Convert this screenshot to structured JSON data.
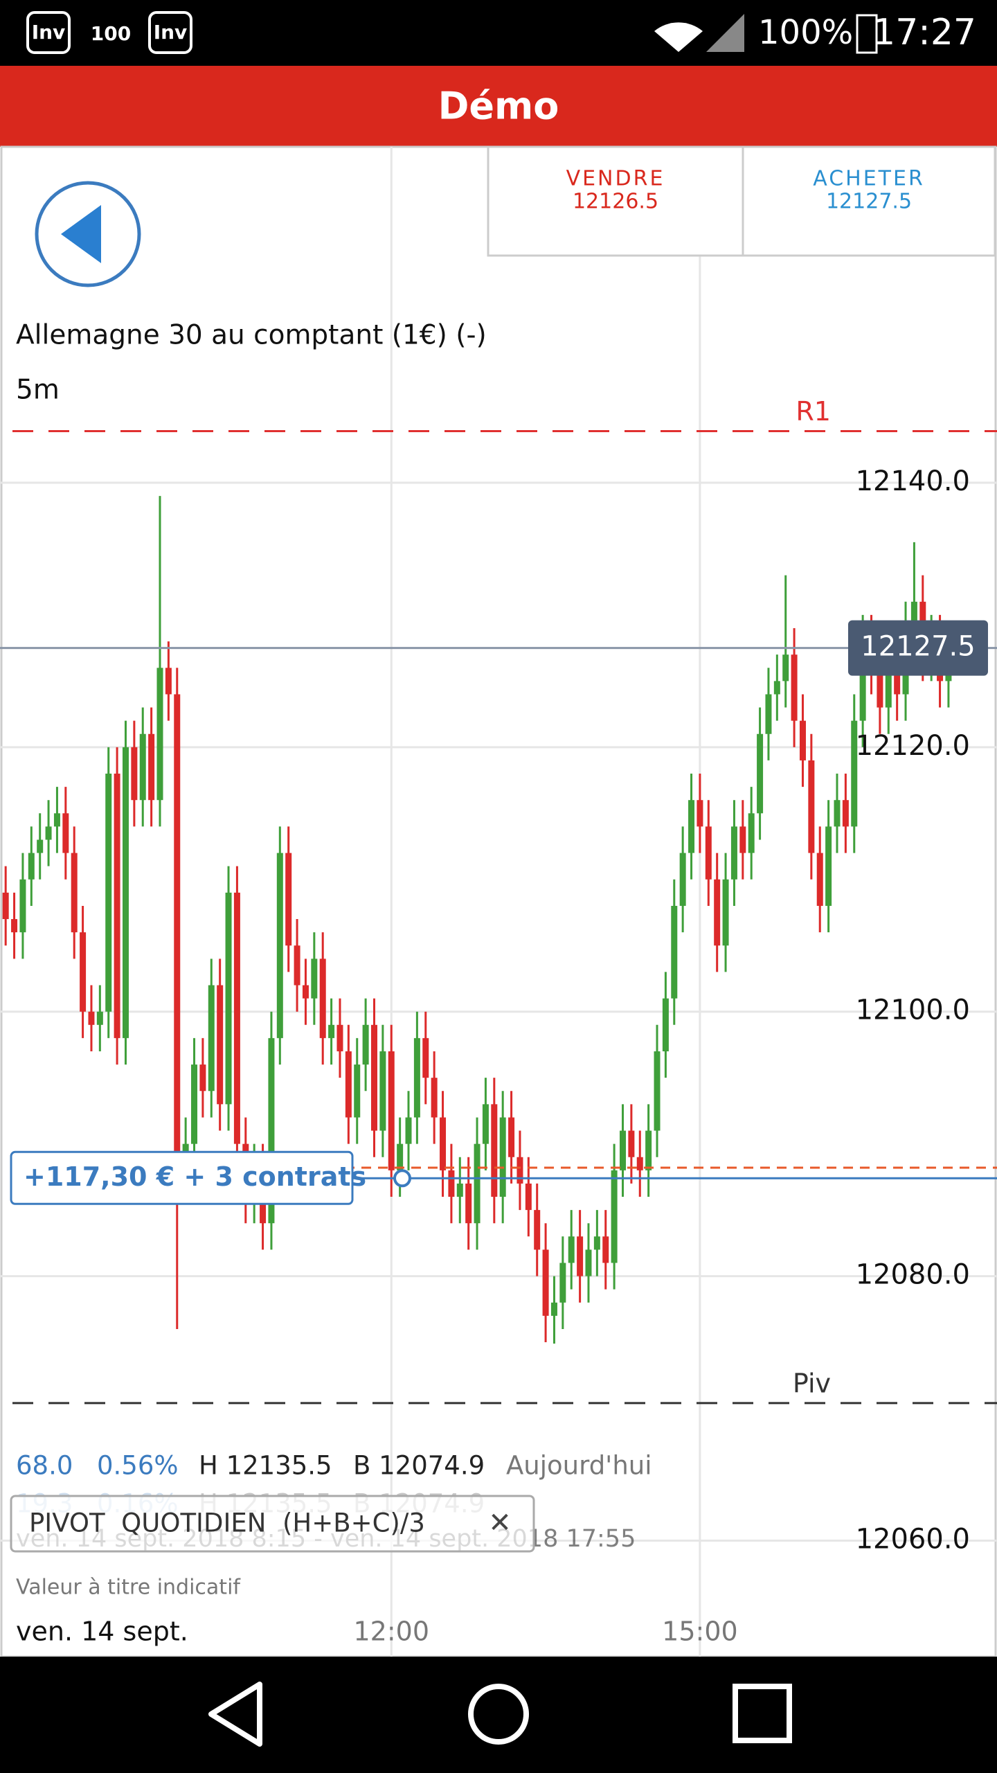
{
  "status_bar": {
    "icons": [
      "Inv",
      "100",
      "Inv"
    ],
    "battery": "100%",
    "time": "17:27"
  },
  "header": {
    "title": "Démo"
  },
  "buttons": {
    "sell": {
      "label": "VENDRE",
      "price": "12126.5"
    },
    "buy": {
      "label": "ACHETER",
      "price": "12127.5"
    }
  },
  "instrument": {
    "name": "Allemagne 30 au comptant (1€) (-)",
    "interval": "5m"
  },
  "stats": {
    "change": "68.0",
    "change_pct": "0.56%",
    "high": "H 12135.5",
    "low": "B 12074.9",
    "period": "Aujourd'hui"
  },
  "ghost": {
    "change": "19.3",
    "change_pct": "0.16%",
    "high": "H 12135.5",
    "low": "B 12074.9",
    "range": "ven. 14 sept. 2018 8:15 - ven. 14 sept. 2018 17:55"
  },
  "indicator_chip": {
    "label": "PIVOT  QUOTIDIEN  (H+B+C)/3",
    "close": "✕"
  },
  "note": "Valeur à titre indicatif",
  "chart_data": {
    "type": "candlestick",
    "up_color": "#3f9f3a",
    "down_color": "#dc2a2a",
    "grid": true,
    "ylim": [
      12055.1,
      12165.4
    ],
    "yticks": [
      {
        "value": 12140,
        "label": "12140.0"
      },
      {
        "value": 12120,
        "label": "12120.0"
      },
      {
        "value": 12100,
        "label": "12100.0"
      },
      {
        "value": 12080,
        "label": "12080.0"
      },
      {
        "value": 12060,
        "label": "12060.0"
      }
    ],
    "xlim": [
      -0.66,
      115.66
    ],
    "xticks": [
      {
        "value": 45,
        "label": "12:00"
      },
      {
        "value": 81,
        "label": "15:00"
      }
    ],
    "date_label": "ven. 14 sept.",
    "current": {
      "value": 12127.5,
      "color": "#4a5a72"
    },
    "hlines": [
      {
        "label": "R1",
        "value": 12143.9,
        "color": "#e03030",
        "dash": true
      },
      {
        "label": "Piv",
        "value": 12070.4,
        "color": "#333333",
        "dash": true
      },
      {
        "value": 12088.2,
        "color": "#e8592a",
        "dash": true
      },
      {
        "label": "+117,30 € + 3 contrats",
        "value": 12087.4,
        "color": "#3b7bbf",
        "dash": false
      }
    ],
    "open": [
      12109,
      12107,
      12106,
      12110,
      12112,
      12113,
      12114,
      12115,
      12112,
      12106,
      12100,
      12099,
      12100,
      12118,
      12098,
      12120,
      12116,
      12121,
      12116,
      12126,
      12124,
      12088,
      12090,
      12096,
      12094,
      12102,
      12093,
      12109,
      12090,
      12086,
      12088,
      12084,
      12098,
      12112,
      12105,
      12102,
      12101,
      12104,
      12098,
      12099,
      12097,
      12092,
      12096,
      12099,
      12091,
      12097,
      12088,
      12090,
      12092,
      12098,
      12095,
      12092,
      12088,
      12086,
      12087,
      12084,
      12090,
      12093,
      12086,
      12092,
      12089,
      12087,
      12085,
      12082,
      12077,
      12078,
      12081,
      12083,
      12080,
      12082,
      12083,
      12081,
      12088,
      12091,
      12089,
      12088,
      12091,
      12097,
      12101,
      12108,
      12112,
      12116,
      12114,
      12110,
      12105,
      12110,
      12114,
      12112,
      12115,
      12121,
      12124,
      12125,
      12127,
      12122,
      12119,
      12112,
      12108,
      12114,
      12116,
      12114,
      12122,
      12128,
      12126,
      12123,
      12126,
      12124,
      12129,
      12131,
      12127,
      12128,
      12125
    ],
    "high": [
      12111,
      12109,
      12112,
      12114,
      12115,
      12116,
      12117,
      12117,
      12114,
      12108,
      12102,
      12102,
      12120,
      12120,
      12122,
      12122,
      12123,
      12123,
      12139,
      12128,
      12126,
      12092,
      12098,
      12098,
      12104,
      12104,
      12111,
      12111,
      12092,
      12090,
      12090,
      12100,
      12114,
      12114,
      12107,
      12104,
      12106,
      12106,
      12101,
      12101,
      12099,
      12098,
      12101,
      12101,
      12099,
      12099,
      12092,
      12094,
      12100,
      12100,
      12097,
      12094,
      12090,
      12089,
      12089,
      12092,
      12095,
      12095,
      12094,
      12094,
      12091,
      12089,
      12087,
      12084,
      12080,
      12083,
      12085,
      12085,
      12084,
      12085,
      12085,
      12090,
      12093,
      12093,
      12091,
      12093,
      12099,
      12103,
      12110,
      12114,
      12118,
      12118,
      12116,
      12112,
      12112,
      12116,
      12116,
      12117,
      12123,
      12126,
      12127,
      12133,
      12129,
      12124,
      12121,
      12114,
      12116,
      12118,
      12118,
      12124,
      12130,
      12130,
      12128,
      12128,
      12128,
      12131,
      12135.5,
      12133,
      12130,
      12130,
      12129
    ],
    "low": [
      12105,
      12104,
      12104,
      12108,
      12110,
      12111,
      12112,
      12110,
      12104,
      12098,
      12097,
      12097,
      12098,
      12096,
      12096,
      12114,
      12114,
      12114,
      12114,
      12122,
      12076,
      12086,
      12088,
      12092,
      12092,
      12091,
      12091,
      12088,
      12084,
      12084,
      12082,
      12082,
      12096,
      12103,
      12100,
      12099,
      12099,
      12096,
      12096,
      12095,
      12090,
      12090,
      12094,
      12089,
      12089,
      12086,
      12086,
      12088,
      12090,
      12093,
      12090,
      12086,
      12084,
      12084,
      12082,
      12082,
      12088,
      12084,
      12084,
      12087,
      12085,
      12083,
      12080,
      12075,
      12074.9,
      12076,
      12079,
      12078,
      12078,
      12080,
      12079,
      12079,
      12086,
      12087,
      12086,
      12086,
      12089,
      12095,
      12099,
      12106,
      12110,
      12112,
      12108,
      12103,
      12103,
      12108,
      12110,
      12110,
      12113,
      12119,
      12122,
      12123,
      12120,
      12117,
      12110,
      12106,
      12106,
      12112,
      12112,
      12112,
      12120,
      12124,
      12121,
      12121,
      12122,
      12122,
      12127,
      12125,
      12125,
      12123,
      12123
    ],
    "close": [
      12107,
      12106,
      12110,
      12112,
      12113,
      12114,
      12115,
      12112,
      12106,
      12100,
      12099,
      12100,
      12118,
      12098,
      12120,
      12116,
      12121,
      12116,
      12126,
      12124,
      12088,
      12090,
      12096,
      12094,
      12102,
      12093,
      12109,
      12090,
      12086,
      12088,
      12084,
      12098,
      12112,
      12105,
      12102,
      12101,
      12104,
      12098,
      12099,
      12097,
      12092,
      12096,
      12099,
      12091,
      12097,
      12088,
      12090,
      12092,
      12098,
      12095,
      12092,
      12088,
      12086,
      12087,
      12084,
      12090,
      12093,
      12086,
      12092,
      12089,
      12087,
      12085,
      12082,
      12077,
      12078,
      12081,
      12083,
      12080,
      12082,
      12083,
      12081,
      12088,
      12091,
      12089,
      12088,
      12091,
      12097,
      12101,
      12108,
      12112,
      12116,
      12114,
      12110,
      12105,
      12110,
      12114,
      12112,
      12115,
      12121,
      12124,
      12125,
      12127,
      12122,
      12119,
      12112,
      12108,
      12114,
      12116,
      12114,
      12122,
      12128,
      12126,
      12123,
      12126,
      12124,
      12129,
      12131,
      12127,
      12128,
      12125,
      12127.5
    ]
  }
}
